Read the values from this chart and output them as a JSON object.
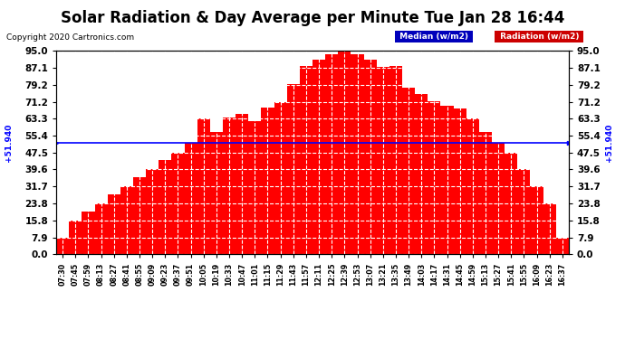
{
  "title": "Solar Radiation & Day Average per Minute Tue Jan 28 16:44",
  "copyright": "Copyright 2020 Cartronics.com",
  "median_value": 51.94,
  "ymin": 0.0,
  "ymax": 95.0,
  "yticks": [
    0.0,
    7.9,
    15.8,
    23.8,
    31.7,
    39.6,
    47.5,
    55.4,
    63.3,
    71.2,
    79.2,
    87.1,
    95.0
  ],
  "bar_color": "#FF0000",
  "median_line_color": "#0000FF",
  "background_color": "#FFFFFF",
  "legend_median_bg": "#0000BB",
  "legend_radiation_bg": "#CC0000",
  "legend_median_text": "Median (w/m2)",
  "legend_radiation_text": "Radiation (w/m2)",
  "title_fontsize": 12,
  "time_labels": [
    "07:30",
    "07:45",
    "07:59",
    "08:13",
    "08:27",
    "08:41",
    "08:55",
    "09:09",
    "09:23",
    "09:37",
    "09:51",
    "10:05",
    "10:19",
    "10:33",
    "10:47",
    "11:01",
    "11:15",
    "11:29",
    "11:43",
    "11:57",
    "12:11",
    "12:25",
    "12:39",
    "12:53",
    "13:07",
    "13:21",
    "13:35",
    "13:49",
    "14:03",
    "14:17",
    "14:31",
    "14:45",
    "14:59",
    "15:13",
    "15:27",
    "15:41",
    "15:55",
    "16:09",
    "16:23",
    "16:37"
  ],
  "radiation_values": [
    7.9,
    15.8,
    20.0,
    23.8,
    28.0,
    31.7,
    36.0,
    39.6,
    44.0,
    47.5,
    52.0,
    63.3,
    57.0,
    64.0,
    65.5,
    62.0,
    68.5,
    71.2,
    79.5,
    88.0,
    91.0,
    93.5,
    94.8,
    93.5,
    91.0,
    87.5,
    88.0,
    78.0,
    75.0,
    71.5,
    69.5,
    68.0,
    63.3,
    57.0,
    52.0,
    47.5,
    39.6,
    31.7,
    23.8,
    7.9
  ]
}
